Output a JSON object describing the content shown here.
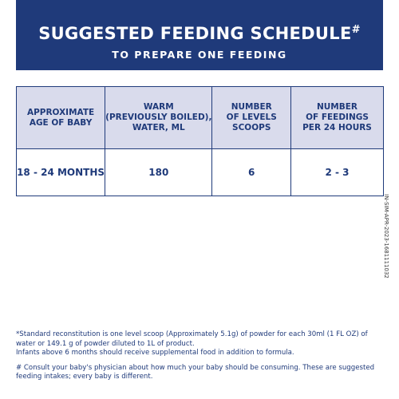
{
  "header": {
    "title": "SUGGESTED FEEDING SCHEDULE",
    "title_mark": "#",
    "subtitle": "TO PREPARE ONE FEEDING"
  },
  "table": {
    "header": [
      [
        "APPROXIMATE",
        "AGE OF BABY"
      ],
      [
        "WARM",
        "(PREVIOUSLY BOILED),",
        "WATER, ML"
      ],
      [
        "NUMBER",
        "OF LEVELS",
        "SCOOPS"
      ],
      [
        "NUMBER",
        "OF FEEDINGS",
        "PER 24 HOURS"
      ]
    ],
    "rows": [
      [
        "18 - 24 MONTHS",
        "180",
        "6",
        "2 - 3"
      ]
    ]
  },
  "side_code": "IN-SIM-APR-2023-1681111032",
  "footnotes": [
    [
      "*Standard reconstitution is one level scoop (Approximately 5.1g) of powder for each 30ml (1 FL OZ) of",
      "water or 149.1 g of powder diluted to 1L of product.",
      "Infants above 6 months should receive supplemental food in addition to formula."
    ],
    [
      "# Consult your baby's physician about how much your baby should be consuming. These are suggested",
      "feeding intakes; every baby is different."
    ]
  ]
}
